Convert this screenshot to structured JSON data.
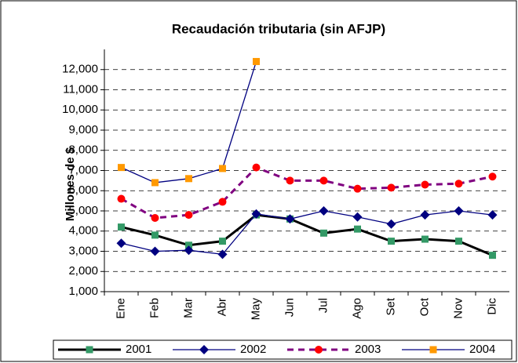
{
  "chart_data": {
    "type": "line",
    "title": "Recaudación tributaria (sin AFJP)",
    "y_label": "Millones de $",
    "categories": [
      "Ene",
      "Feb",
      "Mar",
      "Abr",
      "May",
      "Jun",
      "Jul",
      "Ago",
      "Set",
      "Oct",
      "Nov",
      "Dic"
    ],
    "series": [
      {
        "name": "2001",
        "color": "#000000",
        "marker_color": "#339966",
        "marker": "square",
        "dash": false,
        "values": [
          4200,
          3800,
          3300,
          3500,
          4800,
          4600,
          3900,
          4100,
          3500,
          3600,
          3500,
          2800
        ]
      },
      {
        "name": "2002",
        "color": "#000080",
        "marker_color": "#000080",
        "marker": "diamond",
        "dash": false,
        "values": [
          3400,
          3000,
          3050,
          2850,
          4850,
          4600,
          5000,
          4700,
          4350,
          4800,
          5000,
          4800
        ]
      },
      {
        "name": "2003",
        "color": "#800080",
        "marker_color": "#ff0000",
        "marker": "circle",
        "dash": true,
        "values": [
          5600,
          4650,
          4800,
          5450,
          7150,
          6500,
          6500,
          6100,
          6150,
          6300,
          6350,
          6700
        ]
      },
      {
        "name": "2004",
        "color": "#000080",
        "marker_color": "#ff9900",
        "marker": "square",
        "dash": false,
        "values": [
          7150,
          6400,
          6600,
          7100,
          12400,
          null,
          null,
          null,
          null,
          null,
          null,
          null
        ]
      }
    ],
    "ylim": [
      1000,
      13000
    ],
    "yticks": [
      {
        "value": 1000,
        "label": "1,000"
      },
      {
        "value": 2000,
        "label": "2,000"
      },
      {
        "value": 3000,
        "label": "3,000"
      },
      {
        "value": 4000,
        "label": "4,000"
      },
      {
        "value": 5000,
        "label": "5,000"
      },
      {
        "value": 6000,
        "label": "6,000"
      },
      {
        "value": 7000,
        "label": "7,000"
      },
      {
        "value": 8000,
        "label": "8,000"
      },
      {
        "value": 9000,
        "label": "9,000"
      },
      {
        "value": 10000,
        "label": "10,000"
      },
      {
        "value": 11000,
        "label": "11,000"
      },
      {
        "value": 12000,
        "label": "12,000"
      }
    ],
    "grid": true,
    "legend": "bottom"
  }
}
